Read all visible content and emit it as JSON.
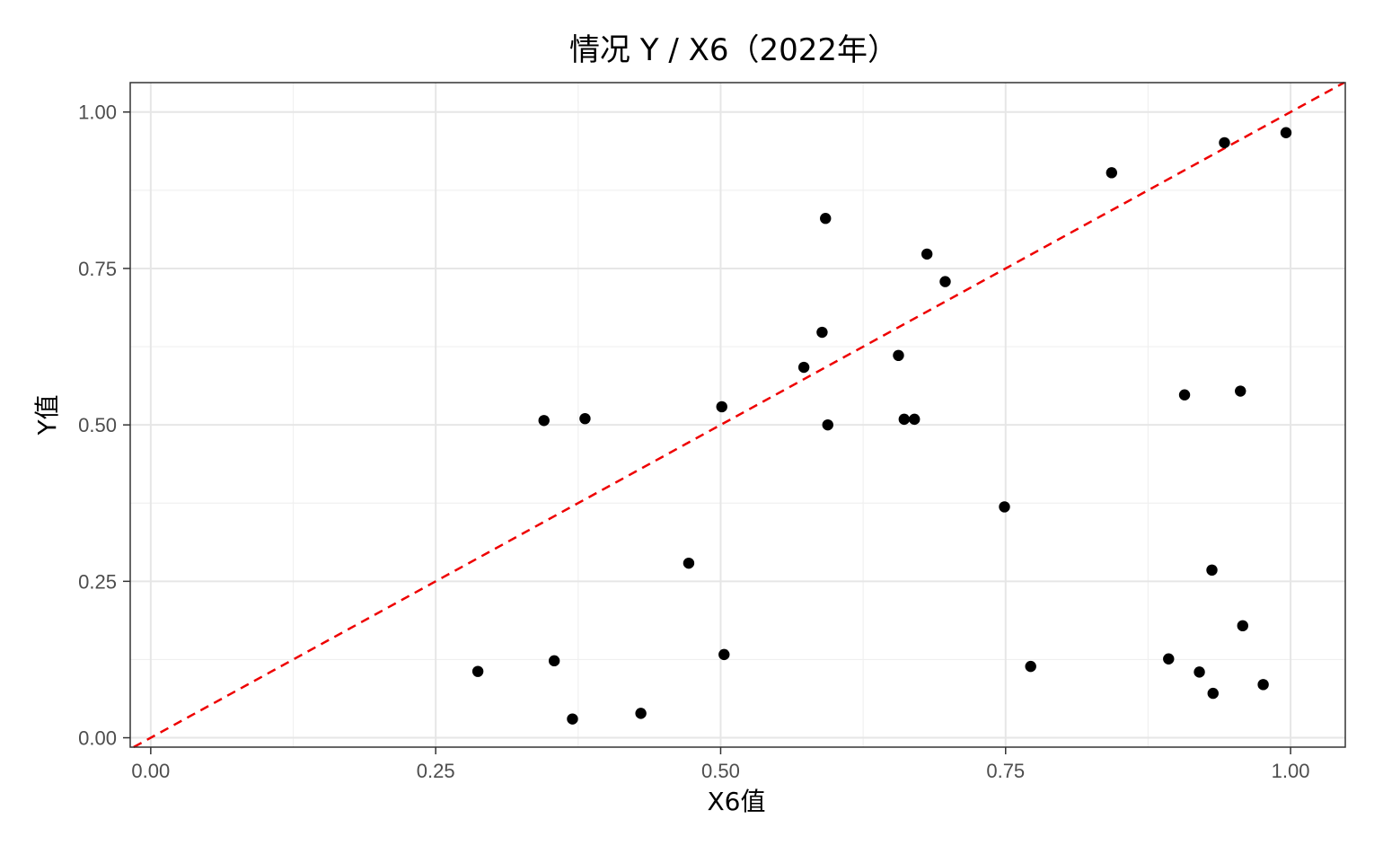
{
  "chart_data": {
    "type": "scatter",
    "title": "情况 Y / X6（2022年）",
    "xlabel": "X6值",
    "ylabel": "Y值",
    "xlim": [
      -0.018,
      1.048
    ],
    "ylim": [
      -0.015,
      1.047
    ],
    "x_ticks": [
      0.0,
      0.25,
      0.5,
      0.75,
      1.0
    ],
    "x_tick_labels": [
      "0.00",
      "0.25",
      "0.50",
      "0.75",
      "1.00"
    ],
    "y_ticks": [
      0.0,
      0.25,
      0.5,
      0.75,
      1.0
    ],
    "y_tick_labels": [
      "0.00",
      "0.25",
      "0.50",
      "0.75",
      "1.00"
    ],
    "grid": true,
    "legend": "none",
    "reference_line": {
      "type": "diagonal y=x",
      "color": "#ee0000",
      "style": "dashed"
    },
    "point_color": "#000000",
    "points": [
      {
        "x": 0.287,
        "y": 0.106
      },
      {
        "x": 0.345,
        "y": 0.507
      },
      {
        "x": 0.354,
        "y": 0.123
      },
      {
        "x": 0.37,
        "y": 0.03
      },
      {
        "x": 0.381,
        "y": 0.51
      },
      {
        "x": 0.43,
        "y": 0.039
      },
      {
        "x": 0.472,
        "y": 0.279
      },
      {
        "x": 0.501,
        "y": 0.529
      },
      {
        "x": 0.503,
        "y": 0.133
      },
      {
        "x": 0.573,
        "y": 0.592
      },
      {
        "x": 0.589,
        "y": 0.648
      },
      {
        "x": 0.592,
        "y": 0.83
      },
      {
        "x": 0.594,
        "y": 0.5
      },
      {
        "x": 0.656,
        "y": 0.611
      },
      {
        "x": 0.661,
        "y": 0.509
      },
      {
        "x": 0.67,
        "y": 0.509
      },
      {
        "x": 0.681,
        "y": 0.773
      },
      {
        "x": 0.697,
        "y": 0.729
      },
      {
        "x": 0.749,
        "y": 0.369
      },
      {
        "x": 0.772,
        "y": 0.114
      },
      {
        "x": 0.843,
        "y": 0.903
      },
      {
        "x": 0.893,
        "y": 0.126
      },
      {
        "x": 0.907,
        "y": 0.548
      },
      {
        "x": 0.92,
        "y": 0.105
      },
      {
        "x": 0.931,
        "y": 0.268
      },
      {
        "x": 0.932,
        "y": 0.071
      },
      {
        "x": 0.942,
        "y": 0.951
      },
      {
        "x": 0.956,
        "y": 0.554
      },
      {
        "x": 0.958,
        "y": 0.179
      },
      {
        "x": 0.976,
        "y": 0.085
      },
      {
        "x": 0.996,
        "y": 0.967
      }
    ]
  }
}
